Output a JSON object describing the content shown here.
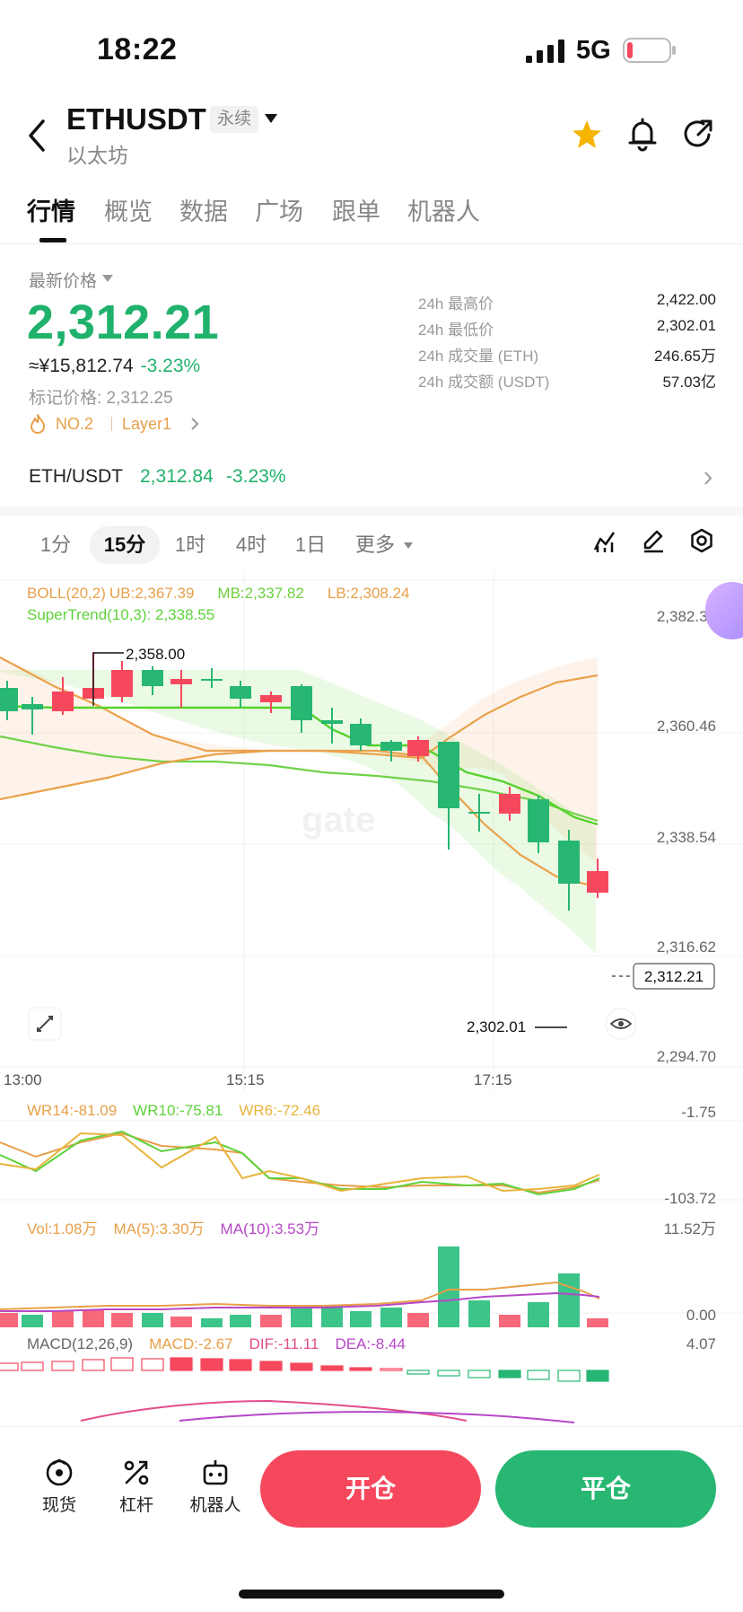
{
  "status_bar": {
    "time": "18:22",
    "network": "5G"
  },
  "header": {
    "symbol": "ETHUSDT",
    "badge": "永续",
    "subname": "以太坊"
  },
  "tabs": [
    {
      "label": "行情",
      "active": true
    },
    {
      "label": "概览",
      "active": false
    },
    {
      "label": "数据",
      "active": false
    },
    {
      "label": "广场",
      "active": false
    },
    {
      "label": "跟单",
      "active": false
    },
    {
      "label": "机器人",
      "active": false
    }
  ],
  "ticker": {
    "latest_label": "最新价格",
    "price": "2,312.21",
    "cny": "≈¥15,812.74",
    "change_pct": "-3.23%",
    "mark_price": "标记价格: 2,312.25",
    "rank": "NO.2",
    "tag": "Layer1",
    "stats": [
      {
        "label": "24h 最高价",
        "value": "2,422.00"
      },
      {
        "label": "24h 最低价",
        "value": "2,302.01"
      },
      {
        "label": "24h 成交量 (ETH)",
        "value": "246.65万"
      },
      {
        "label": "24h 成交额 (USDT)",
        "value": "57.03亿"
      }
    ]
  },
  "pair_row": {
    "pair": "ETH/USDT",
    "price": "2,312.84",
    "pct": "-3.23%"
  },
  "intervals": [
    {
      "label": "1分",
      "active": false
    },
    {
      "label": "15分",
      "active": true
    },
    {
      "label": "1时",
      "active": false
    },
    {
      "label": "4时",
      "active": false
    },
    {
      "label": "1日",
      "active": false
    },
    {
      "label": "更多",
      "active": false
    }
  ],
  "indicators": {
    "boll": "BOLL(20,2)",
    "ub": "UB:2,367.39",
    "mb": "MB:2,337.82",
    "lb": "LB:2,308.24",
    "supertrend": "SuperTrend(10,3): 2,338.55",
    "wr14": "WR14:-81.09",
    "wr10": "WR10:-75.81",
    "wr6": "WR6:-72.46",
    "vol": "Vol:1.08万",
    "ma5": "MA(5):3.30万",
    "ma10": "MA(10):3.53万",
    "macd_title": "MACD(12,26,9)",
    "macd": "MACD:-2.67",
    "dif": "DIF:-11.11",
    "dea": "DEA:-8.44"
  },
  "axes": {
    "price_ticks": [
      "2,382.38",
      "2,360.46",
      "2,338.54",
      "2,316.62",
      "2,294.70"
    ],
    "time_ticks": [
      "13:00",
      "15:15",
      "17:15"
    ],
    "wr_ticks": [
      "-1.75",
      "-103.72"
    ],
    "vol_ticks": [
      "11.52万",
      "0.00"
    ],
    "macd_ticks": [
      "4.07"
    ],
    "high_marker": "2,358.00",
    "low_marker": "2,302.01",
    "last_price_tag": "2,312.21",
    "watermark": "gate"
  },
  "bottom_bar": {
    "spot": "现货",
    "leverage": "杠杆",
    "bot": "机器人",
    "open": "开仓",
    "close": "平仓"
  },
  "colors": {
    "up": "#27b772",
    "down": "#f6485d",
    "accent_orange": "#e8a04a",
    "supertrend": "#5fd23c"
  }
}
